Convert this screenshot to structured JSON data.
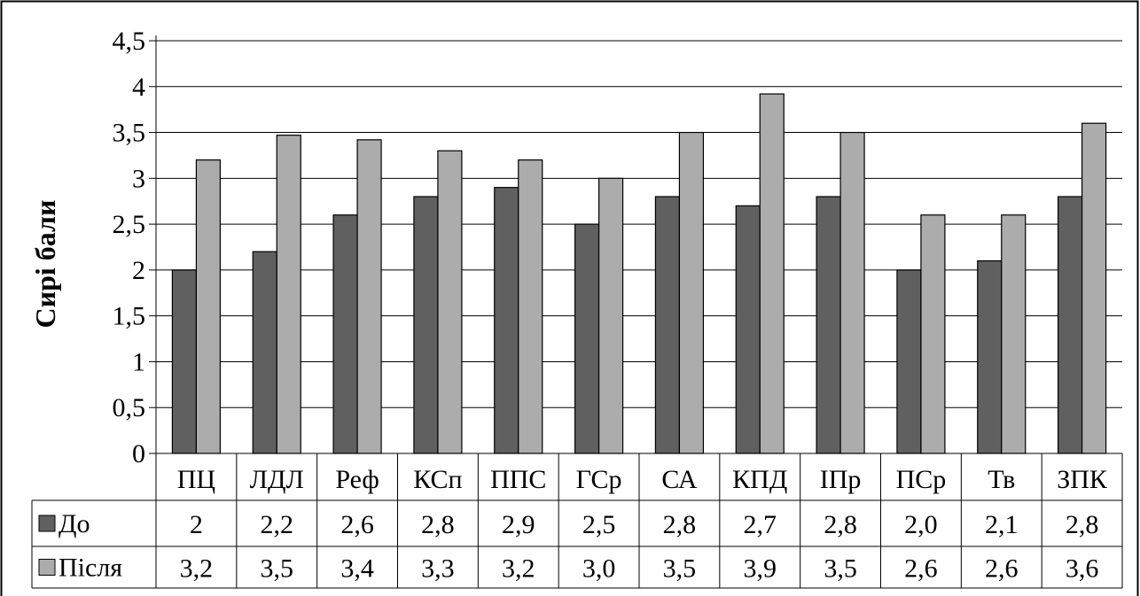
{
  "chart_data": {
    "type": "bar",
    "ylabel": "Сирі бали",
    "ylim": [
      0,
      4.5
    ],
    "ytick_step": 0.5,
    "yticks": [
      "0",
      "0,5",
      "1",
      "1,5",
      "2",
      "2,5",
      "3",
      "3,5",
      "4",
      "4,5"
    ],
    "grid": true,
    "categories": [
      "ПЦ",
      "ЛДЛ",
      "Реф",
      "КСп",
      "ППС",
      "ГСр",
      "СА",
      "КПД",
      "ІПр",
      "ПСр",
      "Тв",
      "ЗПК"
    ],
    "series": [
      {
        "name": "До",
        "color": "#606060",
        "values": [
          2.0,
          2.2,
          2.6,
          2.8,
          2.9,
          2.5,
          2.8,
          2.7,
          2.8,
          2.0,
          2.1,
          2.8
        ],
        "labels": [
          "2",
          "2,2",
          "2,6",
          "2,8",
          "2,9",
          "2,5",
          "2,8",
          "2,7",
          "2,8",
          "2,0",
          "2,1",
          "2,8"
        ]
      },
      {
        "name": "Після",
        "color": "#acacac",
        "values": [
          3.2,
          3.47,
          3.42,
          3.3,
          3.2,
          3.0,
          3.5,
          3.92,
          3.5,
          2.6,
          2.6,
          3.6
        ],
        "labels": [
          "3,2",
          "3,5",
          "3,4",
          "3,3",
          "3,2",
          "3,0",
          "3,5",
          "3,9",
          "3,5",
          "2,6",
          "2,6",
          "3,6"
        ]
      }
    ]
  }
}
